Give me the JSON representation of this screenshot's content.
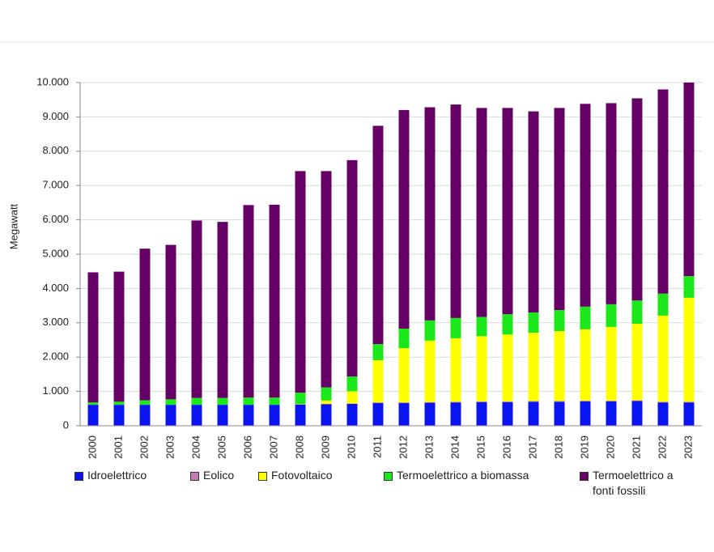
{
  "chart_data": {
    "type": "stacked-bar",
    "y_axis_label": "Megawatt",
    "categories": [
      "2000",
      "2001",
      "2002",
      "2003",
      "2004",
      "2005",
      "2006",
      "2007",
      "2008",
      "2009",
      "2010",
      "2011",
      "2012",
      "2013",
      "2014",
      "2015",
      "2016",
      "2017",
      "2018",
      "2019",
      "2020",
      "2021",
      "2022",
      "2023"
    ],
    "ylim": [
      0,
      10000
    ],
    "yticks": [
      0,
      {
        "value": 1000,
        "label": "1.000"
      },
      {
        "value": 2000,
        "label": "2.000"
      },
      {
        "value": 3000,
        "label": "3.000"
      },
      {
        "value": 4000,
        "label": "4.000"
      },
      {
        "value": 5000,
        "label": "5.000"
      },
      {
        "value": 6000,
        "label": "6.000"
      },
      {
        "value": 7000,
        "label": "7.000"
      },
      {
        "value": 8000,
        "label": "8.000"
      },
      {
        "value": 9000,
        "label": "9.000"
      },
      {
        "value": 10000,
        "label": "10.000"
      }
    ],
    "grid": true,
    "series": [
      {
        "name": "Idroelettrico",
        "color": "#0a14f0",
        "values": [
          610,
          610,
          610,
          610,
          610,
          610,
          610,
          610,
          620,
          630,
          640,
          660,
          660,
          670,
          680,
          690,
          690,
          700,
          700,
          710,
          710,
          720,
          680,
          680
        ]
      },
      {
        "name": "Eolico",
        "color": "#c77bb5",
        "values": [
          0,
          0,
          0,
          0,
          0,
          0,
          0,
          0,
          5,
          5,
          5,
          20,
          20,
          20,
          20,
          20,
          20,
          20,
          20,
          20,
          20,
          20,
          20,
          20
        ]
      },
      {
        "name": "Fotovoltaico",
        "color": "#ffff00",
        "values": [
          0,
          0,
          0,
          0,
          0,
          0,
          0,
          0,
          10,
          100,
          360,
          1230,
          1580,
          1790,
          1850,
          1900,
          1950,
          1990,
          2040,
          2080,
          2150,
          2230,
          2510,
          3030
        ]
      },
      {
        "name": "Termoelettrico a biomassa",
        "color": "#1be81b",
        "values": [
          70,
          90,
          130,
          160,
          200,
          200,
          210,
          210,
          330,
          380,
          430,
          470,
          570,
          590,
          590,
          560,
          590,
          590,
          610,
          660,
          660,
          680,
          640,
          630
        ]
      },
      {
        "name": "Termoelettrico a fonti fossili",
        "color": "#660066",
        "values": [
          3790,
          3790,
          4420,
          4500,
          5170,
          5130,
          5610,
          5620,
          6455,
          6305,
          6305,
          6360,
          6370,
          6210,
          6220,
          6090,
          6010,
          5860,
          5890,
          5910,
          5860,
          5890,
          5950,
          5640
        ]
      }
    ]
  }
}
